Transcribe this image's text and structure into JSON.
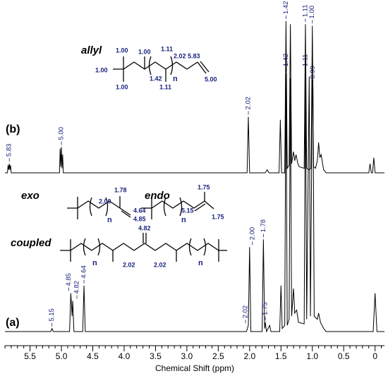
{
  "chart_data": {
    "type": "line",
    "x_label": "Chemical Shift (ppm)",
    "xlim": [
      5.9,
      -0.15
    ],
    "xticks": [
      5.5,
      {
        "value": 5,
        "label": "5.0"
      },
      4.5,
      {
        "value": 4,
        "label": "4.0"
      },
      3.5,
      {
        "value": 3,
        "label": "3.0"
      },
      2.5,
      {
        "value": 2,
        "label": "2.0"
      },
      1.5,
      {
        "value": 1,
        "label": "1.0"
      },
      0.5,
      0
    ],
    "xminorticks": [
      5.9,
      5.8,
      5.7,
      5.6,
      5.4,
      5.3,
      5.2,
      5.1,
      4.9,
      4.8,
      4.7,
      4.6,
      4.4,
      4.3,
      4.2,
      4.1,
      3.9,
      3.8,
      3.7,
      3.6,
      3.4,
      3.3,
      3.2,
      3.1,
      2.9,
      2.8,
      2.7,
      2.6,
      2.4,
      2.3,
      2.2,
      2.1,
      1.9,
      1.8,
      1.7,
      1.6,
      1.4,
      1.3,
      1.2,
      1.1,
      0.9,
      0.8,
      0.7,
      0.6,
      0.4,
      0.3,
      0.2,
      0.1,
      -0.1
    ],
    "series": [
      {
        "name": "(a)",
        "color": "#000000",
        "ylim": [
          0,
          170
        ],
        "x": [
          5.9,
          5.17,
          5.15,
          5.13,
          4.87,
          4.85,
          4.83,
          4.82,
          4.8,
          4.66,
          4.64,
          4.62,
          2.05,
          2.02,
          2.0,
          1.98,
          1.8,
          1.78,
          1.76,
          1.75,
          1.73,
          1.68,
          1.66,
          1.52,
          1.5,
          1.48,
          1.44,
          1.42,
          1.4,
          1.37,
          1.35,
          1.33,
          1.3,
          1.28,
          1.25,
          1.22,
          1.13,
          1.11,
          1.09,
          1.05,
          1.03,
          1.0,
          0.99,
          0.97,
          0.92,
          0.9,
          0.87,
          0.82,
          0.78,
          0.03,
          0.0,
          -0.03,
          -0.15
        ],
        "values": [
          0,
          0,
          2,
          0,
          0,
          25,
          10,
          20,
          0,
          0,
          30,
          0,
          0,
          4,
          55,
          0,
          0,
          60,
          2,
          6,
          0,
          4,
          0,
          0,
          30,
          2,
          4,
          168,
          4,
          8,
          165,
          10,
          28,
          12,
          14,
          6,
          5,
          168,
          8,
          166,
          10,
          164,
          160,
          10,
          8,
          12,
          6,
          2,
          0,
          0,
          25,
          0,
          0
        ],
        "peak_labels": [
          {
            "value": 5.15,
            "label": "5.15"
          },
          {
            "value": 4.85,
            "label": "4.85"
          },
          {
            "value": 4.82,
            "label": "4.82"
          },
          {
            "value": 4.64,
            "label": "4.64"
          },
          {
            "value": 2.02,
            "label": "2.02"
          },
          {
            "value": 2.0,
            "label": "2.00"
          },
          {
            "value": 1.78,
            "label": "1.78"
          },
          {
            "value": 1.75,
            "label": "1.75"
          },
          {
            "value": 1.42,
            "label": "1.42"
          },
          {
            "value": 1.11,
            "label": "1.11"
          },
          {
            "value": 0.99,
            "label": "0.99"
          }
        ]
      },
      {
        "name": "(b)",
        "color": "#000000",
        "ylim": [
          0,
          100
        ],
        "x": [
          5.9,
          5.86,
          5.85,
          5.84,
          5.83,
          5.82,
          5.81,
          5.8,
          5.03,
          5.02,
          5.01,
          5.0,
          4.99,
          4.98,
          4.97,
          2.04,
          2.02,
          2.0,
          1.75,
          1.72,
          1.69,
          1.53,
          1.51,
          1.49,
          1.44,
          1.42,
          1.4,
          1.37,
          1.35,
          1.33,
          1.3,
          1.28,
          1.26,
          1.23,
          1.21,
          1.13,
          1.11,
          1.09,
          1.06,
          1.02,
          1.0,
          0.98,
          0.95,
          0.92,
          0.9,
          0.88,
          0.86,
          0.82,
          0.78,
          0.1,
          0.08,
          0.06,
          0.04,
          0.02,
          0.0,
          -0.15
        ],
        "values": [
          0,
          0,
          5,
          2,
          6,
          2,
          5,
          0,
          0,
          16,
          4,
          17,
          3,
          12,
          0,
          0,
          37,
          0,
          0,
          2,
          0,
          0,
          35,
          0,
          0,
          100,
          3,
          5,
          98,
          6,
          14,
          8,
          12,
          6,
          4,
          3,
          98,
          3,
          2,
          3,
          97,
          4,
          3,
          8,
          20,
          10,
          12,
          2,
          0,
          0,
          6,
          0,
          0,
          10,
          0,
          0
        ],
        "peak_labels": [
          {
            "value": 5.83,
            "label": "5.83"
          },
          {
            "value": 5.0,
            "label": "5.00"
          },
          {
            "value": 2.02,
            "label": "2.02"
          },
          {
            "value": 1.42,
            "label": "1.42"
          },
          {
            "value": 1.11,
            "label": "1.11"
          },
          {
            "value": 1.0,
            "label": "1.00"
          }
        ]
      }
    ]
  },
  "structures": {
    "allyl": {
      "name": "allyl",
      "labels": [
        "1.00",
        "1.00",
        "1.00",
        "1.00",
        "1.11",
        "1.42",
        "1.11",
        "2.02",
        "5.83",
        "5.00",
        "n"
      ]
    },
    "exo": {
      "name": "exo",
      "labels": [
        "1.78",
        "2.00",
        "4.64",
        "4.85",
        "n"
      ]
    },
    "endo": {
      "name": "endo",
      "labels": [
        "1.75",
        "5.15",
        "1.75",
        "n"
      ]
    },
    "coupled": {
      "name": "coupled",
      "labels": [
        "4.82",
        "2.02",
        "2.02",
        "n",
        "n"
      ]
    }
  }
}
